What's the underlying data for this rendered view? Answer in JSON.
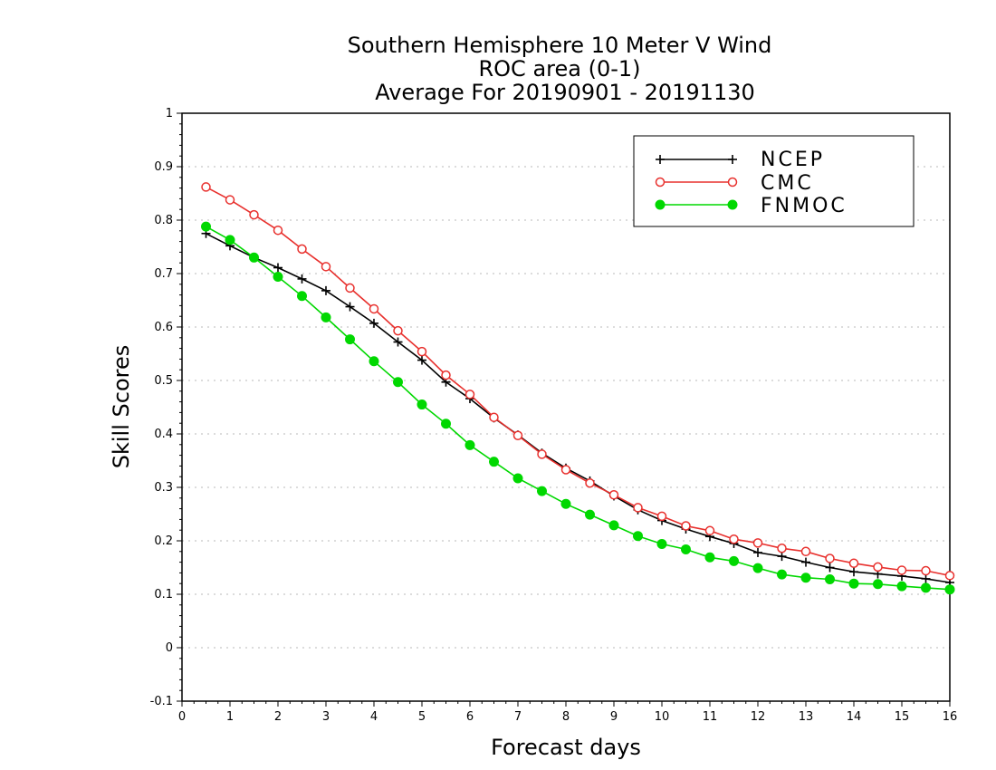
{
  "chart_data": {
    "type": "line",
    "title_lines": [
      "Southern Hemisphere 10 Meter V Wind",
      "ROC area (0-1)",
      "Average For 20190901 - 20191130"
    ],
    "xlabel": "Forecast days",
    "ylabel": "Skill Scores",
    "xlim": [
      0,
      16
    ],
    "ylim": [
      -0.1,
      1
    ],
    "x_ticks": [
      0,
      1,
      2,
      3,
      4,
      5,
      6,
      7,
      8,
      9,
      10,
      11,
      12,
      13,
      14,
      15,
      16
    ],
    "x_tick_labels": [
      "0",
      "1",
      "2",
      "3",
      "4",
      "5",
      "6",
      "7",
      "8",
      "9",
      "10",
      "11",
      "12",
      "13",
      "14",
      "15",
      "16"
    ],
    "y_ticks": [
      -0.1,
      0,
      0.1,
      0.2,
      0.3,
      0.4,
      0.5,
      0.6,
      0.7,
      0.8,
      0.9,
      1
    ],
    "y_tick_labels": [
      "-0.1",
      "0",
      "0.1",
      "0.2",
      "0.3",
      "0.4",
      "0.5",
      "0.6",
      "0.7",
      "0.8",
      "0.9",
      "1"
    ],
    "grid": "horizontal dotted",
    "legend_position": "top-right",
    "x": [
      0.5,
      1,
      1.5,
      2,
      2.5,
      3,
      3.5,
      4,
      4.5,
      5,
      5.5,
      6,
      6.5,
      7,
      7.5,
      8,
      8.5,
      9,
      9.5,
      10,
      10.5,
      11,
      11.5,
      12,
      12.5,
      13,
      13.5,
      14,
      14.5,
      15,
      15.5,
      16
    ],
    "series": [
      {
        "name": "NCEP",
        "color": "#000000",
        "marker": "plus",
        "values": [
          0.775,
          0.752,
          0.73,
          0.711,
          0.69,
          0.668,
          0.638,
          0.607,
          0.572,
          0.538,
          0.497,
          0.466,
          0.43,
          0.398,
          0.364,
          0.336,
          0.312,
          0.284,
          0.258,
          0.238,
          0.222,
          0.208,
          0.195,
          0.178,
          0.171,
          0.16,
          0.15,
          0.142,
          0.138,
          0.134,
          0.129,
          0.122
        ]
      },
      {
        "name": "CMC",
        "color": "#e8302d",
        "marker": "open-circle",
        "values": [
          0.862,
          0.838,
          0.81,
          0.781,
          0.746,
          0.713,
          0.673,
          0.634,
          0.593,
          0.554,
          0.51,
          0.474,
          0.431,
          0.397,
          0.362,
          0.333,
          0.308,
          0.286,
          0.262,
          0.246,
          0.228,
          0.219,
          0.203,
          0.196,
          0.186,
          0.18,
          0.167,
          0.158,
          0.151,
          0.145,
          0.144,
          0.135
        ]
      },
      {
        "name": "FNMOC",
        "color": "#00d800",
        "marker": "filled-circle",
        "values": [
          0.788,
          0.763,
          0.73,
          0.694,
          0.658,
          0.618,
          0.577,
          0.536,
          0.497,
          0.455,
          0.419,
          0.379,
          0.348,
          0.317,
          0.293,
          0.269,
          0.249,
          0.229,
          0.209,
          0.194,
          0.184,
          0.169,
          0.162,
          0.149,
          0.137,
          0.131,
          0.128,
          0.12,
          0.119,
          0.115,
          0.112,
          0.109
        ]
      }
    ]
  }
}
